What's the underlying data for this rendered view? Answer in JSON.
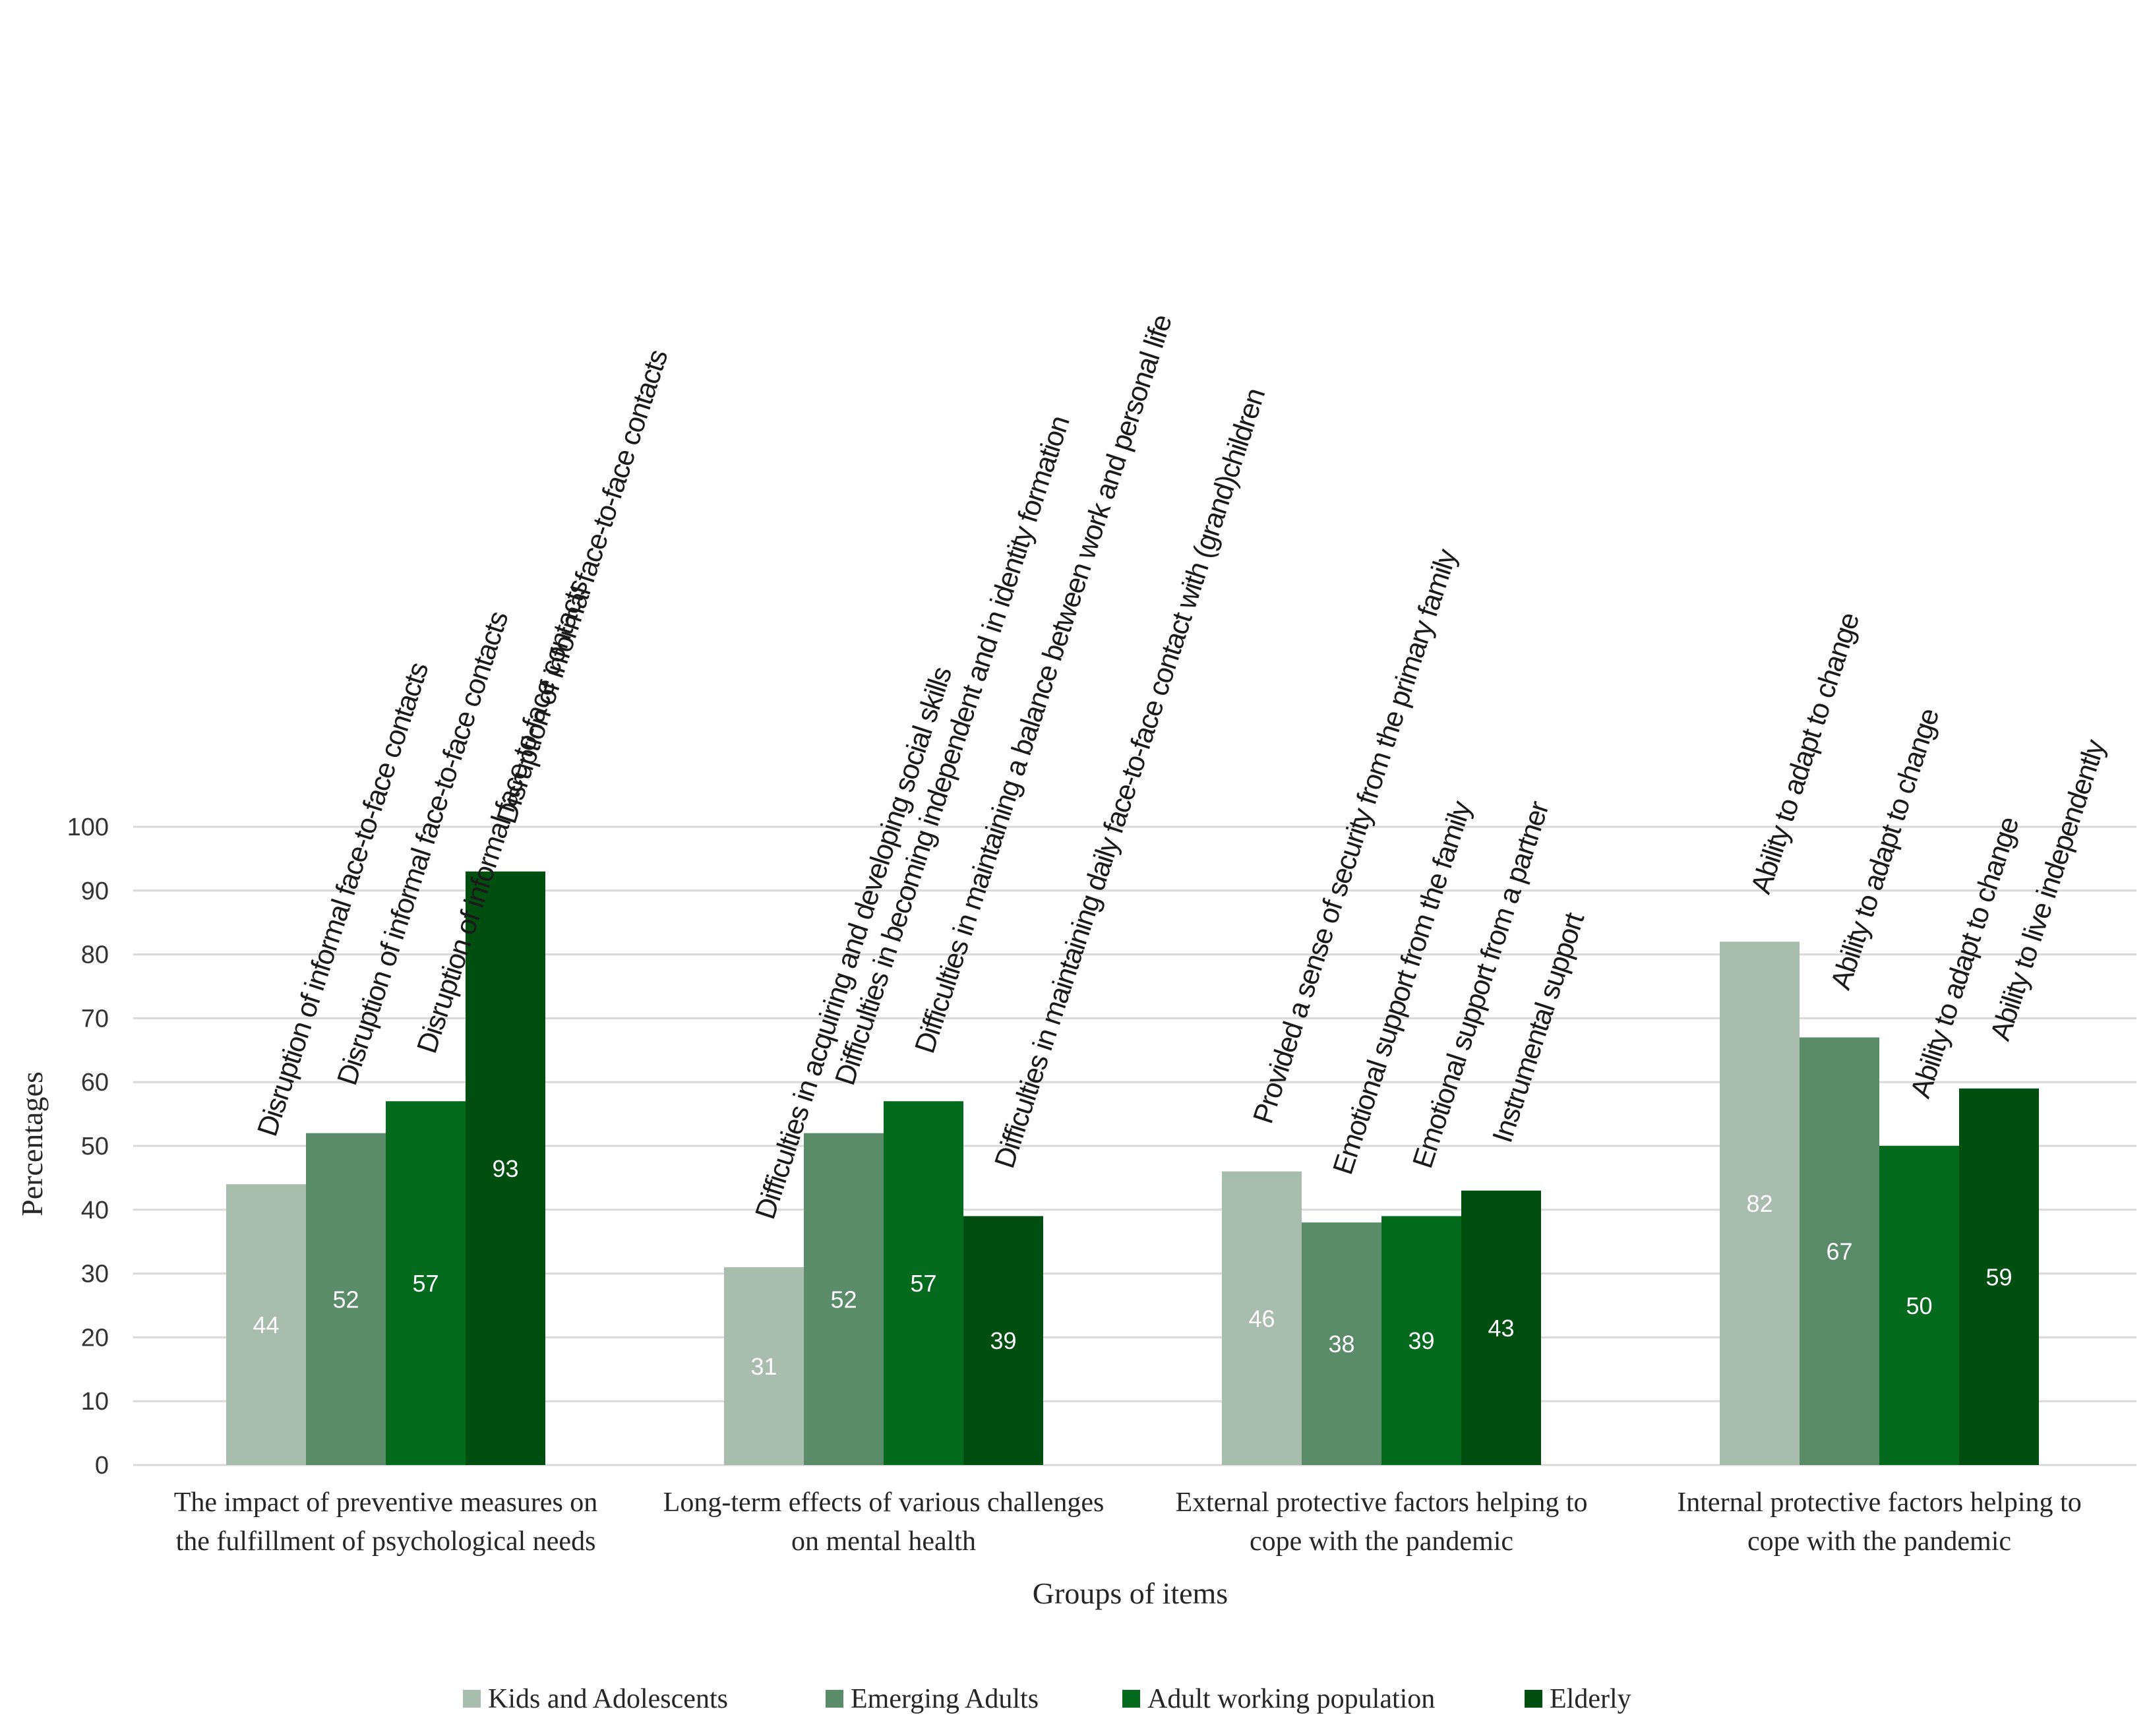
{
  "chart_data": {
    "type": "bar",
    "title": "",
    "xlabel": "Groups of items",
    "ylabel": "Percentages",
    "ylim": [
      0,
      100
    ],
    "yticks": [
      0,
      10,
      20,
      30,
      40,
      50,
      60,
      70,
      80,
      90,
      100
    ],
    "grid": true,
    "legend_position": "bottom",
    "categories": [
      [
        "The impact of preventive measures on",
        "the fulfillment of psychological needs"
      ],
      [
        "Long-term effects of various challenges",
        "on mental health"
      ],
      [
        "External protective factors helping to",
        "cope with the pandemic"
      ],
      [
        "Internal protective factors helping to",
        "cope with the pandemic"
      ]
    ],
    "series": [
      {
        "name": "Kids and Adolescents",
        "color": "#a9bdaf",
        "values": [
          44,
          31,
          46,
          82
        ]
      },
      {
        "name": "Emerging Adults",
        "color": "#5a8c6a",
        "values": [
          52,
          52,
          38,
          67
        ]
      },
      {
        "name": "Adult working population",
        "color": "#046b1e",
        "values": [
          57,
          57,
          39,
          50
        ]
      },
      {
        "name": "Elderly",
        "color": "#004f10",
        "values": [
          93,
          39,
          43,
          59
        ]
      }
    ],
    "item_labels": [
      [
        "Disruption of informal face-to-face contacts",
        "Disruption of informal face-to-face contacts",
        "Disruption of informal face-to-face contacts",
        "Disruption of informal face-to-face contacts"
      ],
      [
        "Difficulties in acquiring and developing social skills",
        "Difficulties in becoming independent and in identity formation",
        "Difficulties in maintaining a balance between work and personal life",
        "Difficulties in maintaining daily face-to-face contact with (grand)children"
      ],
      [
        "Provided a sense of security from the primary family",
        "Emotional support from the family",
        "Emotional support from a partner",
        "Instrumental support"
      ],
      [
        "Ability to adapt  to change",
        "Ability to adapt to change",
        "Ability to adapt to change",
        "Ability to live independently"
      ]
    ]
  }
}
